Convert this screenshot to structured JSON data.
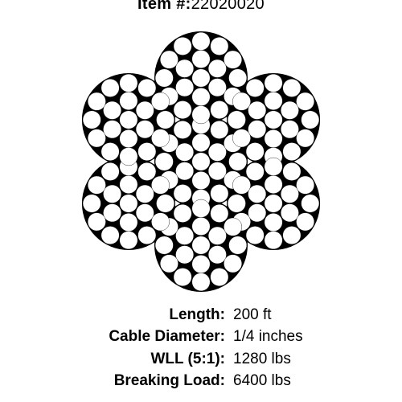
{
  "header": {
    "item_label": "Item #:",
    "item_number": "22020020"
  },
  "specs": [
    {
      "label": "Length:",
      "value": "200 ft"
    },
    {
      "label": "Cable Diameter:",
      "value": "1/4 inches"
    },
    {
      "label": "WLL (5:1):",
      "value": "1280 lbs"
    },
    {
      "label": "Breaking Load:",
      "value": "6400 lbs"
    }
  ],
  "diagram": {
    "type": "wire-rope-cross-section",
    "description": "7x19 wire rope: 6 outer strands of 19 wires each around 1 core strand of 19 wires",
    "svg_size": 360,
    "background_color": "#000000",
    "circle_fill": "#ffffff",
    "circle_stroke": "#000000",
    "circle_stroke_width": 0.4,
    "strand_count": 7,
    "wires_per_strand": 19,
    "strand_center_radius": 104,
    "strand_layout": {
      "wire_radius": 11.2,
      "ring1_radius": 23.5,
      "ring1_count": 6,
      "ring2_radius": 45.7,
      "ring2_count": 12
    },
    "lobe_bg_radius": 58
  },
  "text_color": "#000000",
  "page_bg": "#ffffff",
  "font_family": "Arial, Helvetica, sans-serif"
}
